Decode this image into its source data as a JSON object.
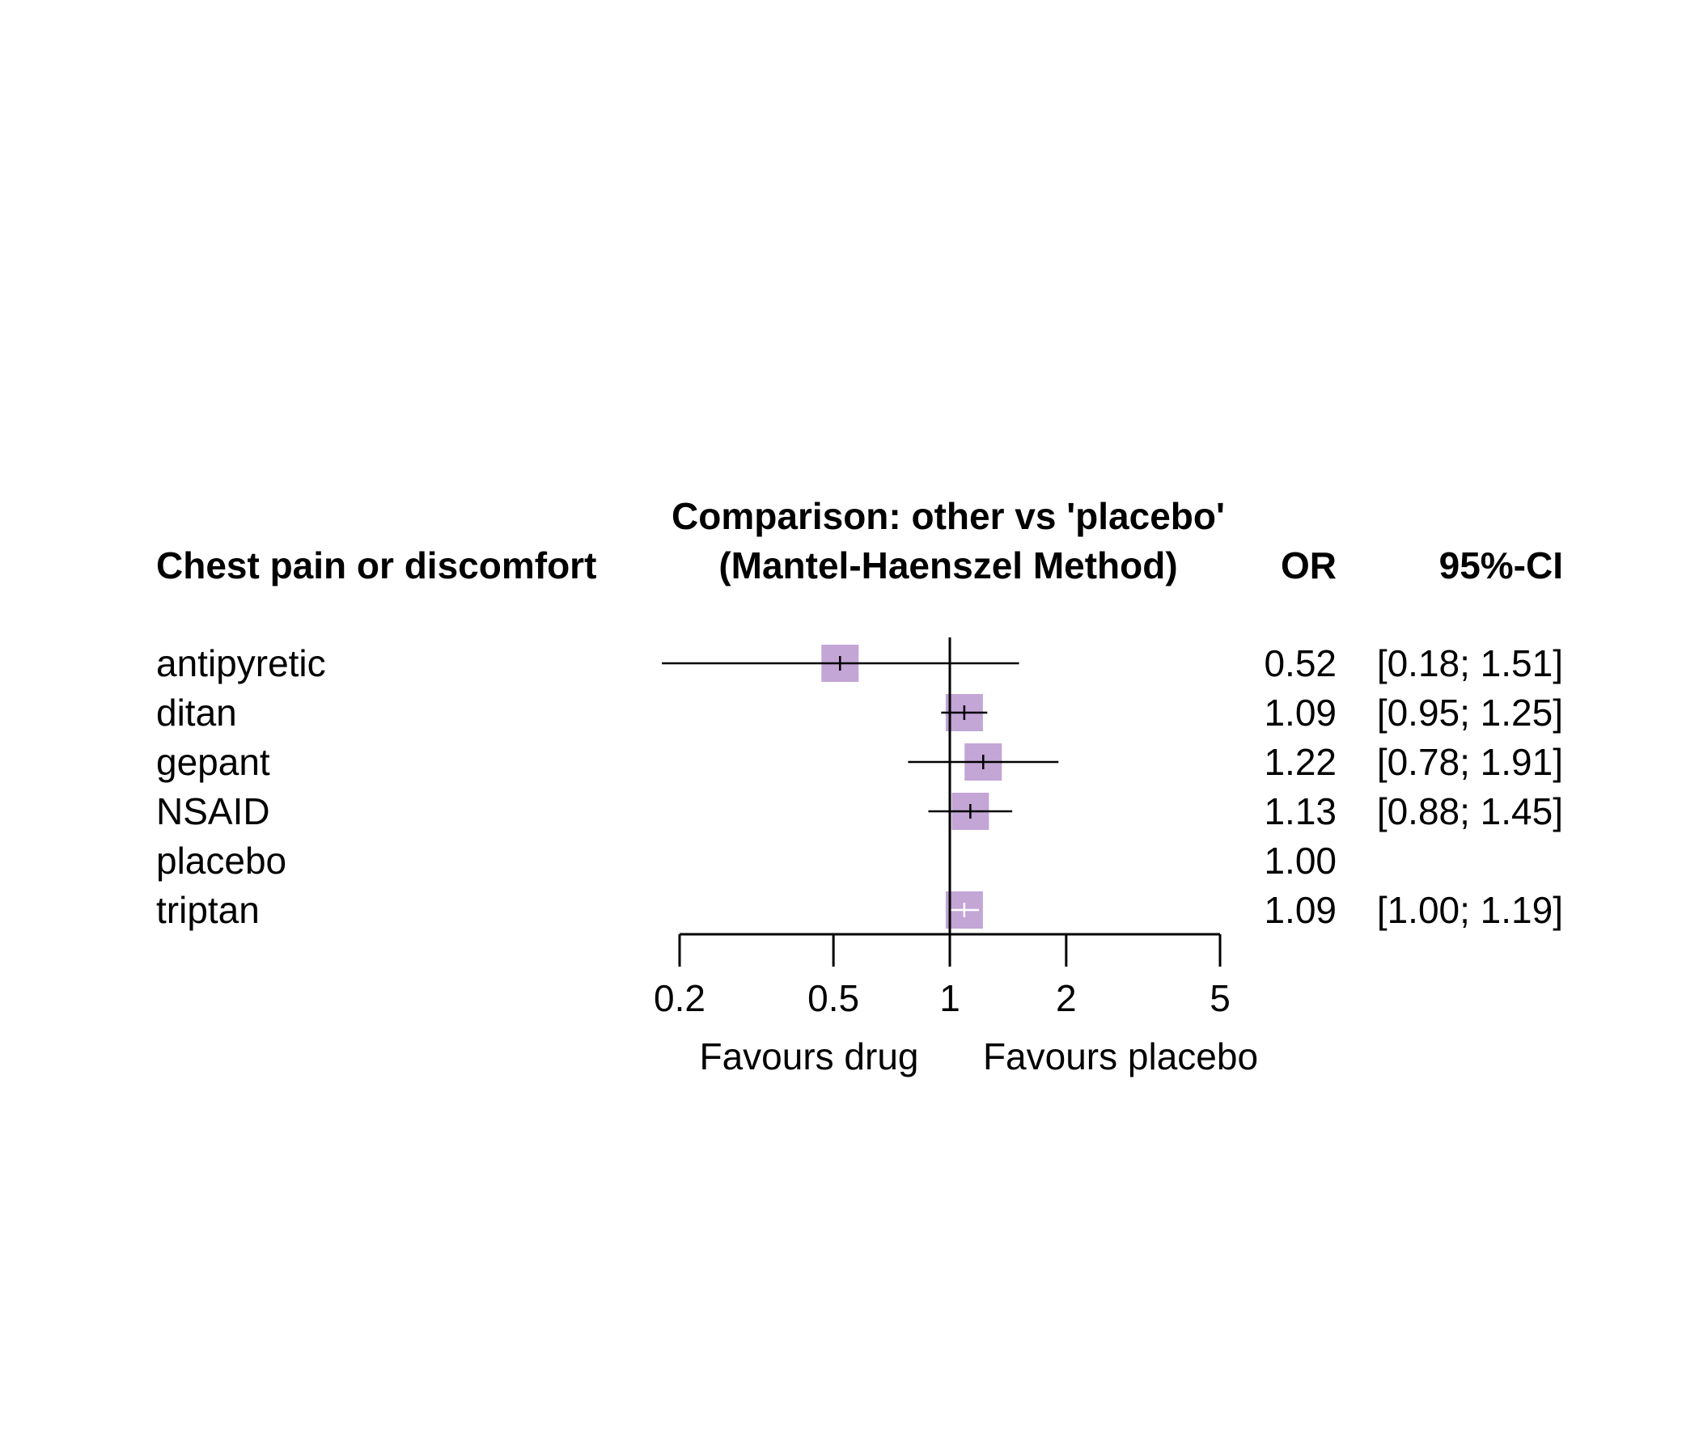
{
  "header": {
    "outcome": "Chest pain or discomfort",
    "comparison_line1": "Comparison: other vs 'placebo'",
    "comparison_line2": "(Mantel-Haenszel Method)",
    "or_label": "OR",
    "ci_label": "95%-CI"
  },
  "colors": {
    "box": "#c3a5d6",
    "line": "#000000",
    "triptan_ci": "#ffffff"
  },
  "chart_data": {
    "type": "forest",
    "scale": "log",
    "xlim": [
      0.2,
      5
    ],
    "xticks": [
      0.2,
      0.5,
      1,
      2,
      5
    ],
    "xtick_labels": [
      "0.2",
      "0.5",
      "1",
      "2",
      "5"
    ],
    "reference_line": 1,
    "xlabel_left": "Favours drug",
    "xlabel_right": "Favours placebo",
    "rows": [
      {
        "name": "antipyretic",
        "or": 0.52,
        "lower": 0.18,
        "upper": 1.51,
        "or_text": "0.52",
        "ci_text": "[0.18; 1.51]"
      },
      {
        "name": "ditan",
        "or": 1.09,
        "lower": 0.95,
        "upper": 1.25,
        "or_text": "1.09",
        "ci_text": "[0.95; 1.25]"
      },
      {
        "name": "gepant",
        "or": 1.22,
        "lower": 0.78,
        "upper": 1.91,
        "or_text": "1.22",
        "ci_text": "[0.78; 1.91]"
      },
      {
        "name": "NSAID",
        "or": 1.13,
        "lower": 0.88,
        "upper": 1.45,
        "or_text": "1.13",
        "ci_text": "[0.88; 1.45]"
      },
      {
        "name": "placebo",
        "or": 1.0,
        "lower": null,
        "upper": null,
        "or_text": "1.00",
        "ci_text": ""
      },
      {
        "name": "triptan",
        "or": 1.09,
        "lower": 1.0,
        "upper": 1.19,
        "or_text": "1.09",
        "ci_text": "[1.00; 1.19]"
      }
    ]
  }
}
